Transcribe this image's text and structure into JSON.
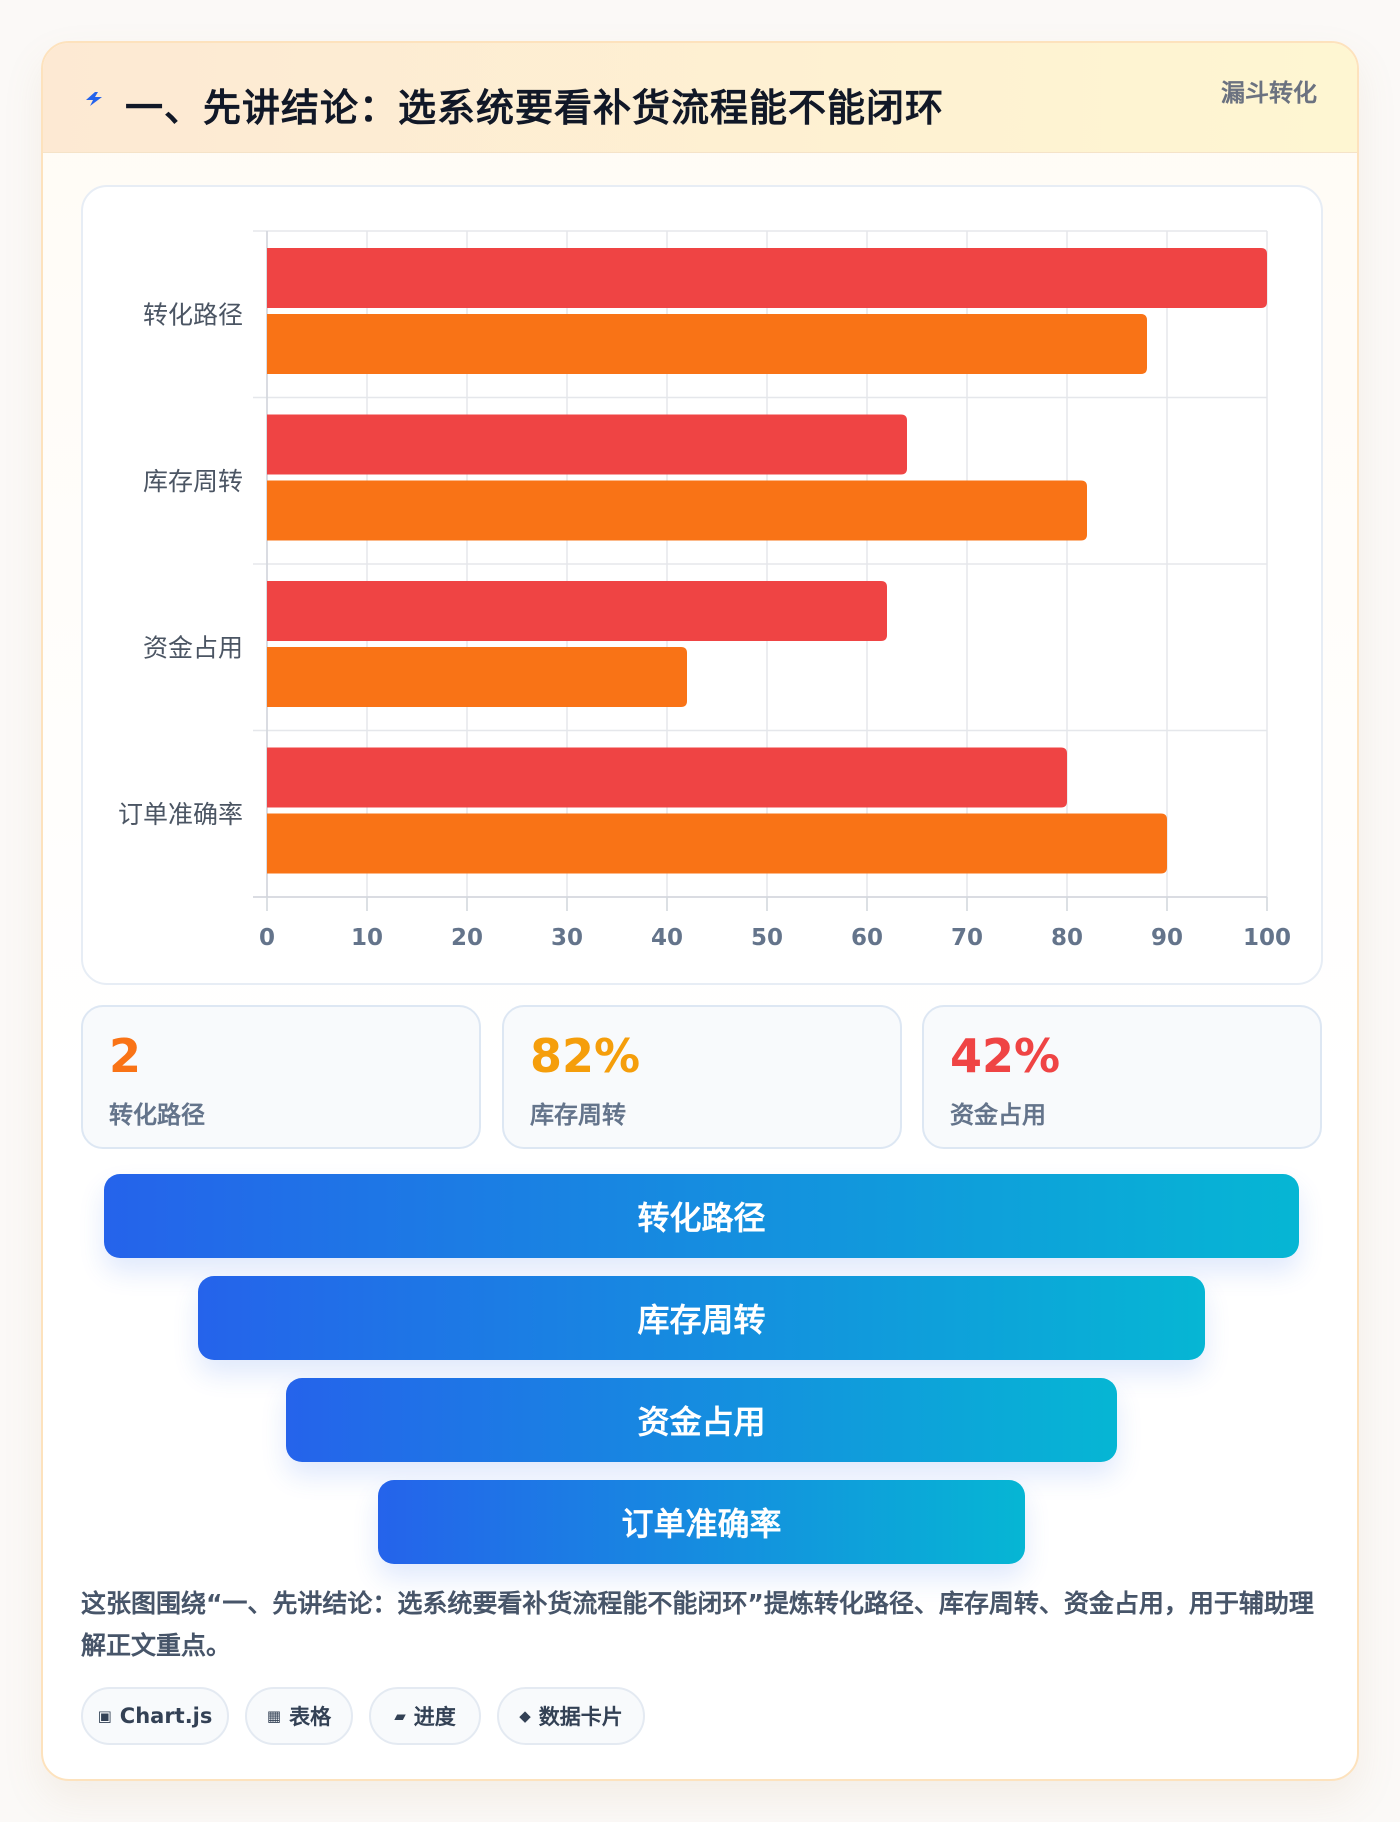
{
  "header": {
    "title": "一、先讲结论：选系统要看补货流程能不能闭环",
    "tag": "漏斗转化",
    "icon": "lightning-icon",
    "accent": "#2563eb"
  },
  "chart_data": {
    "type": "bar",
    "orientation": "horizontal",
    "categories": [
      "转化路径",
      "库存周转",
      "资金占用",
      "订单准确率"
    ],
    "series": [
      {
        "color": "#ef4444",
        "values": [
          100,
          64,
          62,
          80
        ]
      },
      {
        "color": "#f97316",
        "values": [
          88,
          82,
          42,
          90
        ]
      }
    ],
    "xlim": [
      0,
      100
    ],
    "xticks": [
      "0",
      "10",
      "20",
      "30",
      "40",
      "50",
      "60",
      "70",
      "80",
      "90",
      "100"
    ],
    "grid": true,
    "legend": "none"
  },
  "stats": [
    {
      "value": "2",
      "label": "转化路径",
      "color": "#f97316"
    },
    {
      "value": "82%",
      "label": "库存周转",
      "color": "#f59e0b"
    },
    {
      "value": "42%",
      "label": "资金占用",
      "color": "#ef4444"
    }
  ],
  "funnel": [
    {
      "label": "转化路径"
    },
    {
      "label": "库存周转"
    },
    {
      "label": "资金占用"
    },
    {
      "label": "订单准确率"
    }
  ],
  "summary": "这张图围绕“一、先讲结论：选系统要看补货流程能不能闭环”提炼转化路径、库存周转、资金占用，用于辅助理解正文重点。",
  "chips": [
    {
      "icon": "chart-icon",
      "glyph": "▣",
      "label": "Chart.js"
    },
    {
      "icon": "table-icon",
      "glyph": "▦",
      "label": "表格"
    },
    {
      "icon": "progress-icon",
      "glyph": "▰",
      "label": "进度"
    },
    {
      "icon": "data-card-icon",
      "glyph": "◆",
      "label": "数据卡片"
    }
  ]
}
